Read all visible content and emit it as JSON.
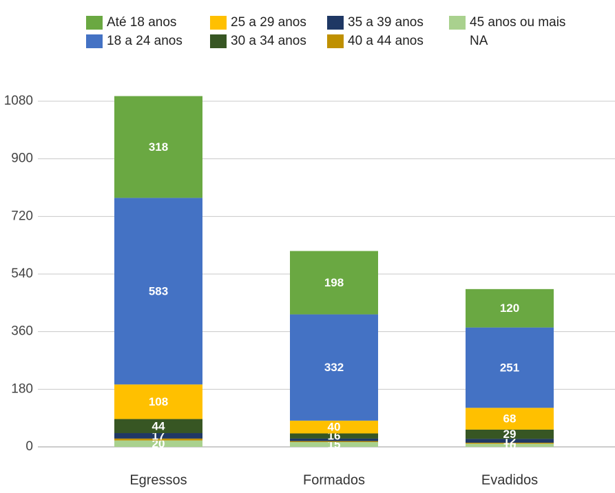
{
  "chart_data": {
    "type": "stacked_bar",
    "categories": [
      "Egressos",
      "Formados",
      "Evadidos"
    ],
    "series": [
      {
        "name": "Até 18 anos",
        "color": "#6aa842",
        "values": [
          318,
          198,
          120
        ]
      },
      {
        "name": "18 a 24 anos",
        "color": "#4472c4",
        "values": [
          583,
          332,
          251
        ]
      },
      {
        "name": "25 a 29 anos",
        "color": "#ffc000",
        "values": [
          108,
          40,
          68
        ]
      },
      {
        "name": "30 a 34 anos",
        "color": "#375623",
        "values": [
          44,
          16,
          29
        ]
      },
      {
        "name": "35 a 39 anos",
        "color": "#1f3864",
        "values": [
          17,
          8,
          12
        ]
      },
      {
        "name": "40 a 44 anos",
        "color": "#bf9000",
        "values": [
          6,
          3,
          3
        ]
      },
      {
        "name": "45 anos ou mais",
        "color": "#a9d18e",
        "values": [
          20,
          15,
          10
        ]
      },
      {
        "name": "NA",
        "color": "#ffffff",
        "values": [
          0,
          0,
          0
        ]
      }
    ],
    "ylim": [
      0,
      1080
    ],
    "yticks": [
      0,
      180,
      360,
      540,
      720,
      900,
      1080
    ],
    "grid": true
  }
}
